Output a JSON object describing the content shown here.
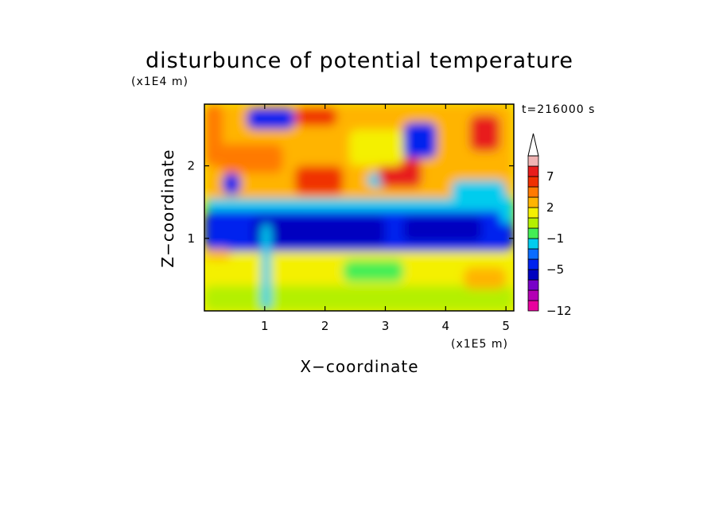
{
  "chart_data": {
    "type": "heatmap",
    "title": "disturbunce of potential temperature",
    "xlabel": "X−coordinate",
    "ylabel": "Z−coordinate",
    "x_unit": "(x1E5 m)",
    "y_unit": "(x1E4 m)",
    "time_label": "t=216000 s",
    "xlim": [
      0,
      5.13
    ],
    "ylim": [
      0,
      2.85
    ],
    "xticks": [
      {
        "value": 1,
        "label": "1"
      },
      {
        "value": 2,
        "label": "2"
      },
      {
        "value": 3,
        "label": "3"
      },
      {
        "value": 4,
        "label": "4"
      },
      {
        "value": 5,
        "label": "5"
      }
    ],
    "yticks": [
      {
        "value": 1,
        "label": "1"
      },
      {
        "value": 2,
        "label": "2"
      }
    ],
    "colorbar": {
      "levels": [
        -12,
        -11,
        -9,
        -7,
        -5,
        -4,
        -2,
        -1,
        0,
        1,
        2,
        4,
        5,
        7,
        8,
        9
      ],
      "labels": [
        {
          "value": 7,
          "text": "7"
        },
        {
          "value": 2,
          "text": "2"
        },
        {
          "value": -1,
          "text": "−1"
        },
        {
          "value": -5,
          "text": "−5"
        },
        {
          "value": -12,
          "text": "−12"
        }
      ],
      "colors": [
        "#e8009e",
        "#b400b4",
        "#7800c8",
        "#0000c0",
        "#0022ee",
        "#0a6cff",
        "#00ccee",
        "#44ee55",
        "#b4f000",
        "#f4f000",
        "#ffb400",
        "#ff7a00",
        "#f03000",
        "#e81c1c",
        "#f0b4b4"
      ],
      "extend_top": true
    },
    "regions": [
      {
        "x": [
          0.0,
          5.13
        ],
        "y": [
          0.0,
          0.35
        ],
        "value": 0.5
      },
      {
        "x": [
          0.0,
          5.13
        ],
        "y": [
          0.35,
          0.82
        ],
        "value": 1.5
      },
      {
        "x": [
          0.0,
          5.13
        ],
        "y": [
          0.82,
          1.38
        ],
        "value": -4.5
      },
      {
        "x": [
          0.0,
          5.13
        ],
        "y": [
          1.38,
          1.55
        ],
        "value": -1.5
      },
      {
        "x": [
          0.0,
          5.13
        ],
        "y": [
          1.55,
          2.85
        ],
        "value": 3.0
      },
      {
        "x": [
          0.8,
          3.0
        ],
        "y": [
          0.9,
          1.3
        ],
        "value": -7.0
      },
      {
        "x": [
          3.3,
          4.6
        ],
        "y": [
          0.95,
          1.3
        ],
        "value": -6.0
      },
      {
        "x": [
          0.0,
          0.3
        ],
        "y": [
          2.0,
          2.85
        ],
        "value": 4.5
      },
      {
        "x": [
          0.25,
          1.3
        ],
        "y": [
          1.9,
          2.3
        ],
        "value": 4.5
      },
      {
        "x": [
          0.7,
          1.5
        ],
        "y": [
          2.5,
          2.8
        ],
        "value": -5.0
      },
      {
        "x": [
          1.5,
          2.3
        ],
        "y": [
          1.6,
          2.0
        ],
        "value": 5.5
      },
      {
        "x": [
          2.7,
          3.2
        ],
        "y": [
          1.7,
          1.9
        ],
        "value": -1.5
      },
      {
        "x": [
          2.9,
          3.6
        ],
        "y": [
          1.7,
          2.1
        ],
        "value": 7.5
      },
      {
        "x": [
          3.3,
          3.85
        ],
        "y": [
          2.1,
          2.6
        ],
        "value": -5.0
      },
      {
        "x": [
          4.4,
          4.9
        ],
        "y": [
          2.2,
          2.7
        ],
        "value": 7.5
      },
      {
        "x": [
          4.1,
          5.0
        ],
        "y": [
          1.5,
          1.8
        ],
        "value": -1.5
      },
      {
        "x": [
          0.3,
          0.6
        ],
        "y": [
          1.6,
          1.9
        ],
        "value": -5.0
      },
      {
        "x": [
          1.5,
          2.2
        ],
        "y": [
          2.55,
          2.8
        ],
        "value": 5.0
      },
      {
        "x": [
          2.4,
          3.3
        ],
        "y": [
          2.0,
          2.5
        ],
        "value": 1.5
      },
      {
        "x": [
          4.9,
          5.13
        ],
        "y": [
          1.2,
          1.6
        ],
        "value": -1.5
      },
      {
        "x": [
          0.95,
          1.1
        ],
        "y": [
          0.0,
          1.2
        ],
        "value": -1.5
      },
      {
        "x": [
          2.3,
          3.3
        ],
        "y": [
          0.4,
          0.7
        ],
        "value": -0.5
      },
      {
        "x": [
          4.3,
          5.0
        ],
        "y": [
          0.3,
          0.6
        ],
        "value": 3.0
      },
      {
        "x": [
          0.0,
          0.45
        ],
        "y": [
          0.7,
          0.85
        ],
        "value": 3.0
      }
    ]
  }
}
